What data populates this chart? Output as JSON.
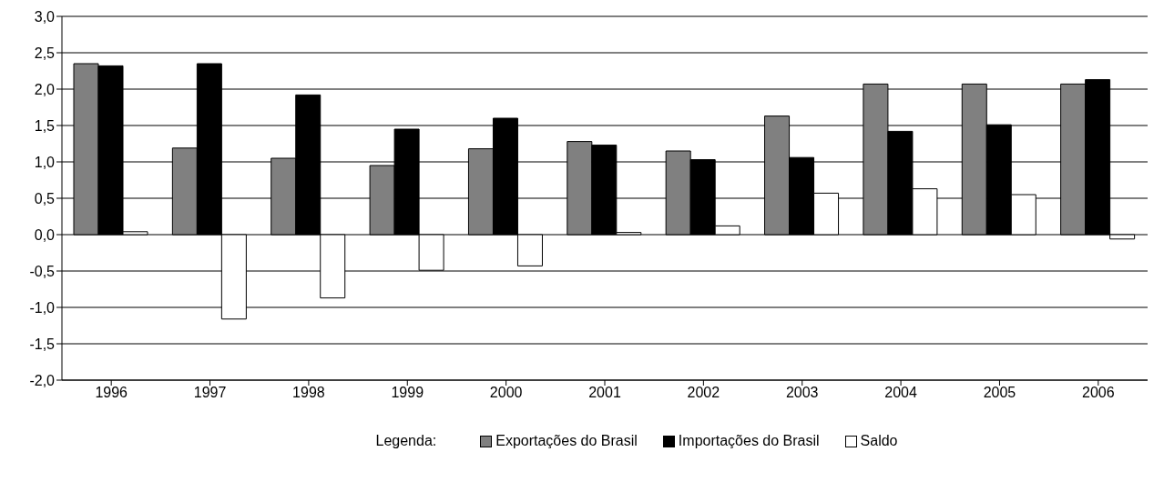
{
  "chart_data": {
    "type": "bar",
    "categories": [
      "1996",
      "1997",
      "1998",
      "1999",
      "2000",
      "2001",
      "2002",
      "2003",
      "2004",
      "2005",
      "2006"
    ],
    "series": [
      {
        "name": "Exportações do Brasil",
        "color": "#808080",
        "values": [
          2.35,
          1.19,
          1.05,
          0.95,
          1.18,
          1.28,
          1.15,
          1.63,
          2.07,
          2.07,
          2.07
        ]
      },
      {
        "name": "Importações do Brasil",
        "color": "#000000",
        "values": [
          2.32,
          2.35,
          1.92,
          1.45,
          1.6,
          1.23,
          1.03,
          1.06,
          1.42,
          1.51,
          2.13
        ]
      },
      {
        "name": "Saldo",
        "color": "#ffffff",
        "values": [
          0.04,
          -1.16,
          -0.87,
          -0.49,
          -0.43,
          0.03,
          0.12,
          0.57,
          0.63,
          0.55,
          -0.06
        ]
      }
    ],
    "ylim": [
      -2,
      3
    ],
    "yticks": [
      {
        "value": -2,
        "label": "-2,0"
      },
      {
        "value": -1.5,
        "label": "-1,5"
      },
      {
        "value": -1,
        "label": "-1,0"
      },
      {
        "value": -0.5,
        "label": "-0,5"
      },
      {
        "value": 0,
        "label": "0,0"
      },
      {
        "value": 0.5,
        "label": "0,5"
      },
      {
        "value": 1,
        "label": "1,0"
      },
      {
        "value": 1.5,
        "label": "1,5"
      },
      {
        "value": 2,
        "label": "2,0"
      },
      {
        "value": 2.5,
        "label": "2,5"
      },
      {
        "value": 3,
        "label": "3,0"
      }
    ],
    "grid": "y",
    "legend": "bottom",
    "legend_title": "Legenda:"
  }
}
